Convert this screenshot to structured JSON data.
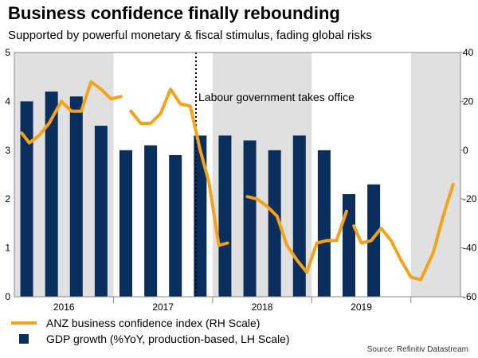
{
  "chart_data": {
    "type": "bar+line",
    "title": "Business confidence finally rebounding",
    "subtitle": "Supported by powerful monetary & fiscal stimulus, fading global risks",
    "source": "Source: Refinitiv Datastream",
    "annotation": "Labour government takes office",
    "years": [
      "2016",
      "2017",
      "2018",
      "2019"
    ],
    "left_axis": {
      "min": 0,
      "max": 5,
      "ticks": [
        "0",
        "1",
        "2",
        "3",
        "4",
        "5"
      ]
    },
    "right_axis": {
      "min": -60,
      "max": 40,
      "ticks": [
        "-60",
        "-40",
        "-20",
        "0",
        "20",
        "40"
      ]
    },
    "gdp_series": {
      "name": "GDP growth (%YoY, production-based, LH Scale)",
      "color": "#0a2f5e",
      "quarters": [
        0,
        1,
        2,
        3,
        4,
        5,
        6,
        7,
        8,
        9,
        10,
        11,
        12,
        13,
        14
      ],
      "values": [
        4.0,
        4.2,
        4.1,
        3.5,
        3.0,
        3.1,
        2.9,
        3.3,
        3.3,
        3.2,
        3.0,
        3.3,
        3.0,
        2.1,
        2.3
      ]
    },
    "anz_series": {
      "name": "ANZ business confidence index (RH Scale)",
      "color": "#f5a21b",
      "segments": [
        [
          [
            -0.2,
            7
          ],
          [
            0.1,
            3
          ],
          [
            0.5,
            6
          ],
          [
            0.9,
            11
          ],
          [
            1.4,
            20
          ],
          [
            1.8,
            16
          ],
          [
            2.2,
            16
          ],
          [
            2.6,
            28
          ],
          [
            3.0,
            25
          ],
          [
            3.4,
            21
          ],
          [
            3.8,
            22
          ]
        ],
        [
          [
            4.2,
            16
          ],
          [
            4.6,
            11
          ],
          [
            5.0,
            11
          ],
          [
            5.4,
            15
          ],
          [
            5.8,
            25
          ],
          [
            6.2,
            19
          ],
          [
            6.6,
            18
          ],
          [
            7.0,
            0
          ],
          [
            7.35,
            -13
          ],
          [
            7.75,
            -39
          ],
          [
            8.1,
            -38
          ]
        ],
        [
          [
            8.9,
            -19
          ],
          [
            9.3,
            -20
          ],
          [
            9.7,
            -23
          ],
          [
            10.1,
            -27
          ],
          [
            10.5,
            -39
          ],
          [
            10.9,
            -45
          ],
          [
            11.3,
            -50
          ],
          [
            11.7,
            -38
          ],
          [
            12.1,
            -37
          ],
          [
            12.5,
            -37
          ],
          [
            12.9,
            -25
          ]
        ],
        [
          [
            13.2,
            -31
          ],
          [
            13.5,
            -38
          ],
          [
            13.9,
            -37
          ],
          [
            14.3,
            -32
          ],
          [
            14.7,
            -37
          ],
          [
            15.1,
            -45
          ],
          [
            15.5,
            -52
          ],
          [
            15.9,
            -53
          ],
          [
            16.4,
            -42
          ],
          [
            16.8,
            -27
          ],
          [
            17.2,
            -14
          ]
        ]
      ]
    },
    "shaded_quarter_ranges": [
      [
        -0.5,
        3.5
      ],
      [
        7.5,
        11.5
      ],
      [
        15.5,
        17.5
      ]
    ]
  }
}
